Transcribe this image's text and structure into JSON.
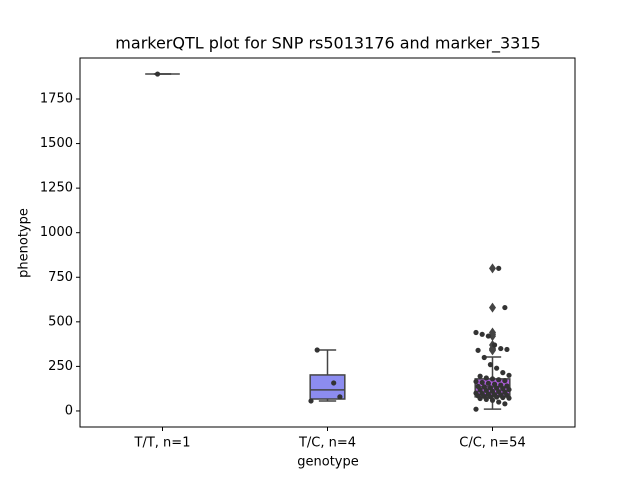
{
  "chart_data": {
    "type": "box",
    "title": "markerQTL plot for SNP rs5013176 and marker_3315",
    "x_label": "genotype",
    "y_label": "phenotype",
    "ylim": [
      -90,
      1980
    ],
    "yticks": [
      0,
      250,
      500,
      750,
      1000,
      1250,
      1500,
      1750
    ],
    "categories": [
      "T/T, n=1",
      "T/C, n=4",
      "C/C, n=54"
    ],
    "point_color": "#333333",
    "line_color": "#444444",
    "boxes": [
      {
        "color": "#8c8cf0",
        "whislo": 1890,
        "q1": 1890,
        "med": 1890,
        "q3": 1890,
        "whishi": 1890,
        "fliers": [],
        "points": [
          1890
        ]
      },
      {
        "color": "#8c8cf0",
        "whislo": 56,
        "q1": 67,
        "med": 118,
        "q3": 202,
        "whishi": 342,
        "fliers": [],
        "points": [
          157,
          79,
          56,
          342
        ]
      },
      {
        "color": "#b05ee0",
        "whislo": 10,
        "q1": 79,
        "med": 135,
        "q3": 180,
        "whishi": 303,
        "fliers": [
          800,
          580,
          440,
          430,
          420,
          370,
          350,
          345,
          340
        ],
        "points": [
          800,
          580,
          440,
          430,
          420,
          370,
          350,
          345,
          340,
          300,
          260,
          240,
          215,
          200,
          195,
          185,
          180,
          175,
          170,
          165,
          160,
          155,
          150,
          145,
          140,
          138,
          135,
          130,
          128,
          125,
          120,
          118,
          115,
          110,
          108,
          105,
          100,
          98,
          95,
          92,
          90,
          88,
          85,
          82,
          80,
          78,
          75,
          72,
          70,
          65,
          60,
          50,
          40,
          10
        ]
      }
    ]
  }
}
